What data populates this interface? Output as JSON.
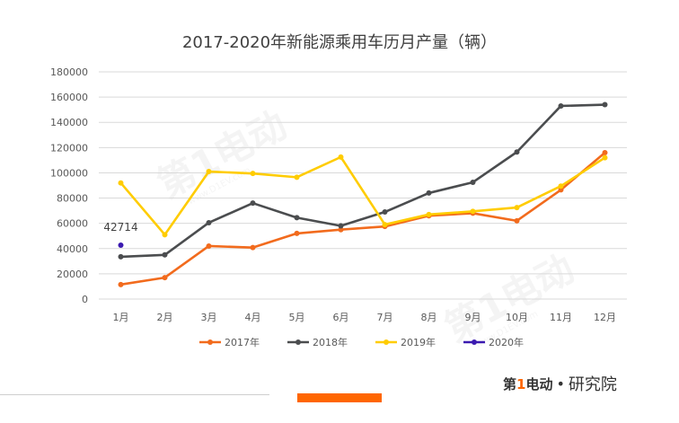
{
  "chart_data": {
    "type": "line",
    "title": "2017-2020年新能源乘用车历月产量（辆）",
    "categories": [
      "1月",
      "2月",
      "3月",
      "4月",
      "5月",
      "6月",
      "7月",
      "8月",
      "9月",
      "10月",
      "11月",
      "12月"
    ],
    "ylim": [
      0,
      180000
    ],
    "yticks": [
      0,
      20000,
      40000,
      60000,
      80000,
      100000,
      120000,
      140000,
      160000,
      180000
    ],
    "grid": true,
    "legend_position": "bottom",
    "series": [
      {
        "name": "2017年",
        "color": "#f26b1d",
        "values": [
          11500,
          17000,
          42000,
          40800,
          52000,
          55000,
          57500,
          66000,
          68000,
          62000,
          86500,
          116000
        ]
      },
      {
        "name": "2018年",
        "color": "#4b4d4f",
        "values": [
          33500,
          35000,
          60500,
          76000,
          64500,
          58000,
          69000,
          84000,
          92500,
          116500,
          153000,
          154000
        ]
      },
      {
        "name": "2019年",
        "color": "#ffcc00",
        "values": [
          92000,
          51000,
          101000,
          99500,
          96500,
          112500,
          59000,
          67000,
          69500,
          72500,
          89500,
          112000
        ]
      },
      {
        "name": "2020年",
        "color": "#3b1ab0",
        "values": [
          42714,
          null,
          null,
          null,
          null,
          null,
          null,
          null,
          null,
          null,
          null,
          null
        ]
      }
    ],
    "annotations": [
      {
        "series": "2020年",
        "index": 0,
        "text": "42714"
      }
    ]
  },
  "watermark": {
    "text": "第1电动",
    "url": "www.D1EV.com"
  },
  "brand": {
    "logo_pre": "第",
    "logo_num": "1",
    "logo_post": "电动",
    "separator": "•",
    "subtitle": "研究院"
  }
}
